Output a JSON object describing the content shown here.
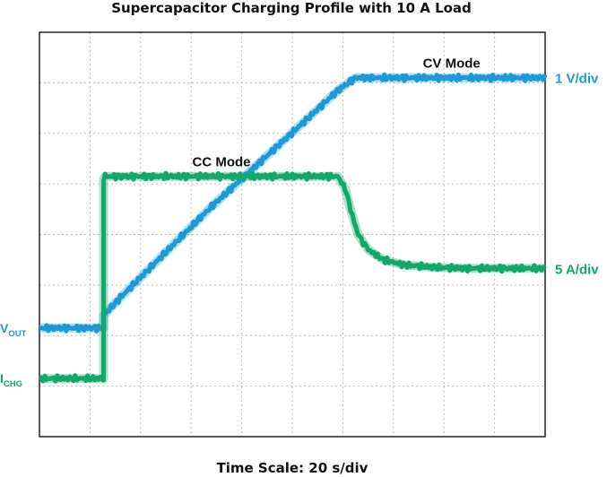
{
  "chart_data": {
    "type": "line",
    "title": "Supercapacitor Charging Profile with 10 A Load",
    "xlabel": "Time Scale: 20 s/div",
    "ylabel": "",
    "xlim": [
      0,
      10
    ],
    "ylim": [
      0,
      8
    ],
    "grid": true,
    "colors": {
      "vout": "#1a9bd7",
      "ichg": "#12a76b",
      "grid": "#bdbdbd",
      "frame": "#222222"
    },
    "series": [
      {
        "key": "vout",
        "name": "VOUT",
        "name_main": "V",
        "name_sub": "OUT",
        "scale_label": "1 V/div",
        "x": [
          0,
          1.27,
          1.27,
          1.6,
          2.2,
          2.8,
          3.4,
          4.0,
          4.6,
          5.2,
          5.9,
          6.25,
          7.0,
          8.0,
          9.0,
          10
        ],
        "y": [
          2.15,
          2.15,
          2.4,
          2.75,
          3.35,
          3.95,
          4.55,
          5.1,
          5.65,
          6.2,
          6.85,
          7.1,
          7.1,
          7.1,
          7.1,
          7.1
        ]
      },
      {
        "key": "ichg",
        "name": "ICHG",
        "name_main": "I",
        "name_sub": "CHG",
        "scale_label": "5 A/div",
        "x": [
          0,
          1.27,
          1.27,
          1.3,
          2.0,
          3.0,
          4.0,
          5.0,
          5.9,
          6.05,
          6.15,
          6.3,
          6.5,
          6.8,
          7.2,
          7.8,
          8.5,
          9.0,
          10
        ],
        "y": [
          1.15,
          1.15,
          5.1,
          5.15,
          5.15,
          5.15,
          5.15,
          5.15,
          5.15,
          4.9,
          4.5,
          4.0,
          3.7,
          3.5,
          3.4,
          3.35,
          3.33,
          3.33,
          3.33
        ]
      }
    ],
    "annotations": [
      {
        "text": "CC Mode",
        "x": 3.6,
        "y": 5.35
      },
      {
        "text": "CV Mode",
        "x": 8.15,
        "y": 7.3
      }
    ]
  }
}
